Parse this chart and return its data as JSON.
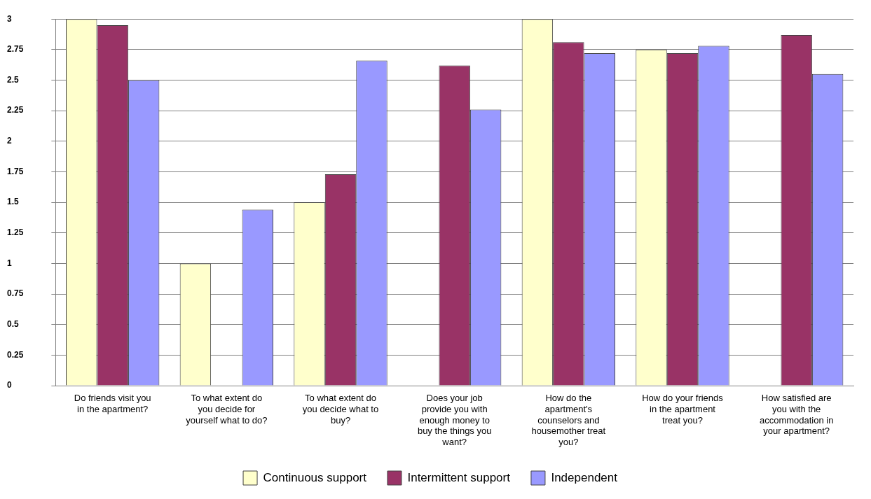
{
  "chart_data": {
    "type": "bar",
    "categories": [
      "Do friends visit you in the apartment?",
      "To what extent do you decide for yourself what to do?",
      "To what extent do you decide what to buy?",
      "Does your job provide you with enough money to buy the things you want?",
      "How do the apartment's counselors and housemother treat you?",
      "How do your friends in the apartment treat you?",
      "How satisfied are you with the accommodation in your apartment?"
    ],
    "series": [
      {
        "name": "Continuous support",
        "color": "#ffffcc",
        "values": [
          3,
          1,
          1.5,
          null,
          3,
          2.75,
          null
        ]
      },
      {
        "name": "Intermittent support",
        "color": "#993366",
        "values": [
          2.95,
          null,
          1.73,
          2.62,
          2.81,
          2.72,
          2.87
        ]
      },
      {
        "name": "Independent",
        "color": "#9999ff",
        "values": [
          2.5,
          1.44,
          2.66,
          2.26,
          2.72,
          2.78,
          2.55
        ]
      }
    ],
    "ylim": [
      0,
      3
    ],
    "yticks": [
      0,
      0.25,
      0.5,
      0.75,
      1,
      1.25,
      1.5,
      1.75,
      2,
      2.25,
      2.5,
      2.75,
      3
    ],
    "grid": "y",
    "legend": "bottom"
  }
}
